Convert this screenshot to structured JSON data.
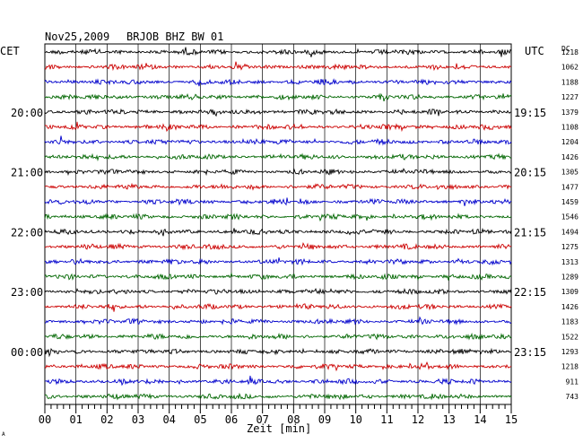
{
  "header": {
    "date": "Nov25,2009",
    "station": "BRJOB BHZ BW 01",
    "left_zone": "CET",
    "right_zone": "UTC",
    "dc_label": "DC"
  },
  "chart_data": {
    "type": "line",
    "title": "Nov25,2009   BRJOB BHZ BW 01",
    "xlabel": "Zeit [min]",
    "xlim": [
      0,
      15
    ],
    "x_ticks": [
      "00",
      "01",
      "02",
      "03",
      "04",
      "05",
      "06",
      "07",
      "08",
      "09",
      "10",
      "11",
      "12",
      "13",
      "14",
      "15"
    ],
    "grid": true,
    "trace_colors": [
      "#000000",
      "#cc0000",
      "#0000cc",
      "#006600"
    ],
    "left_time_labels": [
      {
        "row": 4,
        "label": "20:00"
      },
      {
        "row": 8,
        "label": "21:00"
      },
      {
        "row": 12,
        "label": "22:00"
      },
      {
        "row": 16,
        "label": "23:00"
      },
      {
        "row": 20,
        "label": "00:00"
      }
    ],
    "right_time_labels": [
      {
        "row": 4,
        "label": "19:15"
      },
      {
        "row": 8,
        "label": "20:15"
      },
      {
        "row": 12,
        "label": "21:15"
      },
      {
        "row": 16,
        "label": "22:15"
      },
      {
        "row": 20,
        "label": "23:15"
      }
    ],
    "dc_values": [
      "1218",
      "1062",
      "1188",
      "1227",
      "1379",
      "1108",
      "1204",
      "1426",
      "1305",
      "1477",
      "1459",
      "1546",
      "1494",
      "1275",
      "1313",
      "1289",
      "1309",
      "1426",
      "1183",
      "1522",
      "1293",
      "1218",
      "911",
      "743"
    ],
    "rows": 24
  },
  "footer": {
    "corner_mark": "A"
  }
}
